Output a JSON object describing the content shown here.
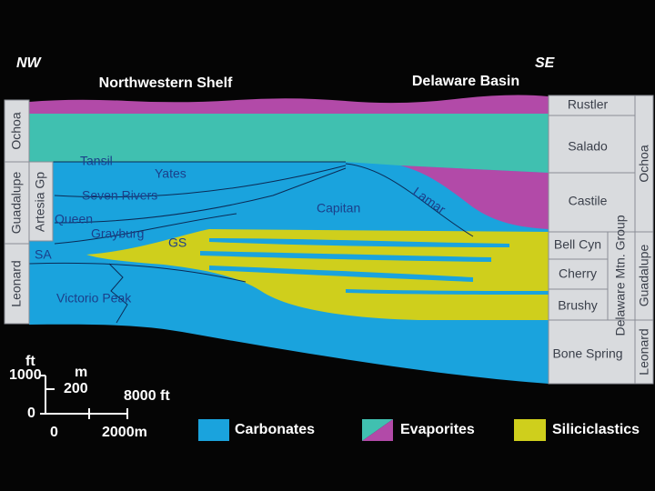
{
  "header": {
    "left_end": "NW",
    "right_end": "SE",
    "left_region": "Northwestern Shelf",
    "right_region": "Delaware Basin"
  },
  "left_column": {
    "series": [
      "Ochoa",
      "Guadalupe",
      "Leonard"
    ],
    "group": "Artesia Gp"
  },
  "units": {
    "tansil": "Tansil",
    "yates": "Yates",
    "seven_rivers": "Seven Rivers",
    "queen": "Queen",
    "grayburg": "Grayburg",
    "sa": "SA",
    "gs": "GS",
    "victorio_peak": "Victorio Peak",
    "capitan": "Capitan",
    "lamar": "Lamar"
  },
  "right_column": {
    "formations": [
      "Rustler",
      "Salado",
      "Castile",
      "Bell Cyn",
      "Cherry",
      "Brushy",
      "Bone Spring"
    ],
    "group": "Delaware Mtn. Group",
    "series": [
      "Ochoa",
      "Guadalupe",
      "Leonard"
    ]
  },
  "scale": {
    "ft_unit": "ft",
    "ft_top": "1000",
    "ft_zero": "0",
    "m_unit": "m",
    "m_top": "200",
    "h_ft": "8000 ft",
    "h_zero": "0",
    "h_m": "2000m"
  },
  "legend": [
    "Carbonates",
    "Evaporites",
    "Siliciclastics"
  ]
}
